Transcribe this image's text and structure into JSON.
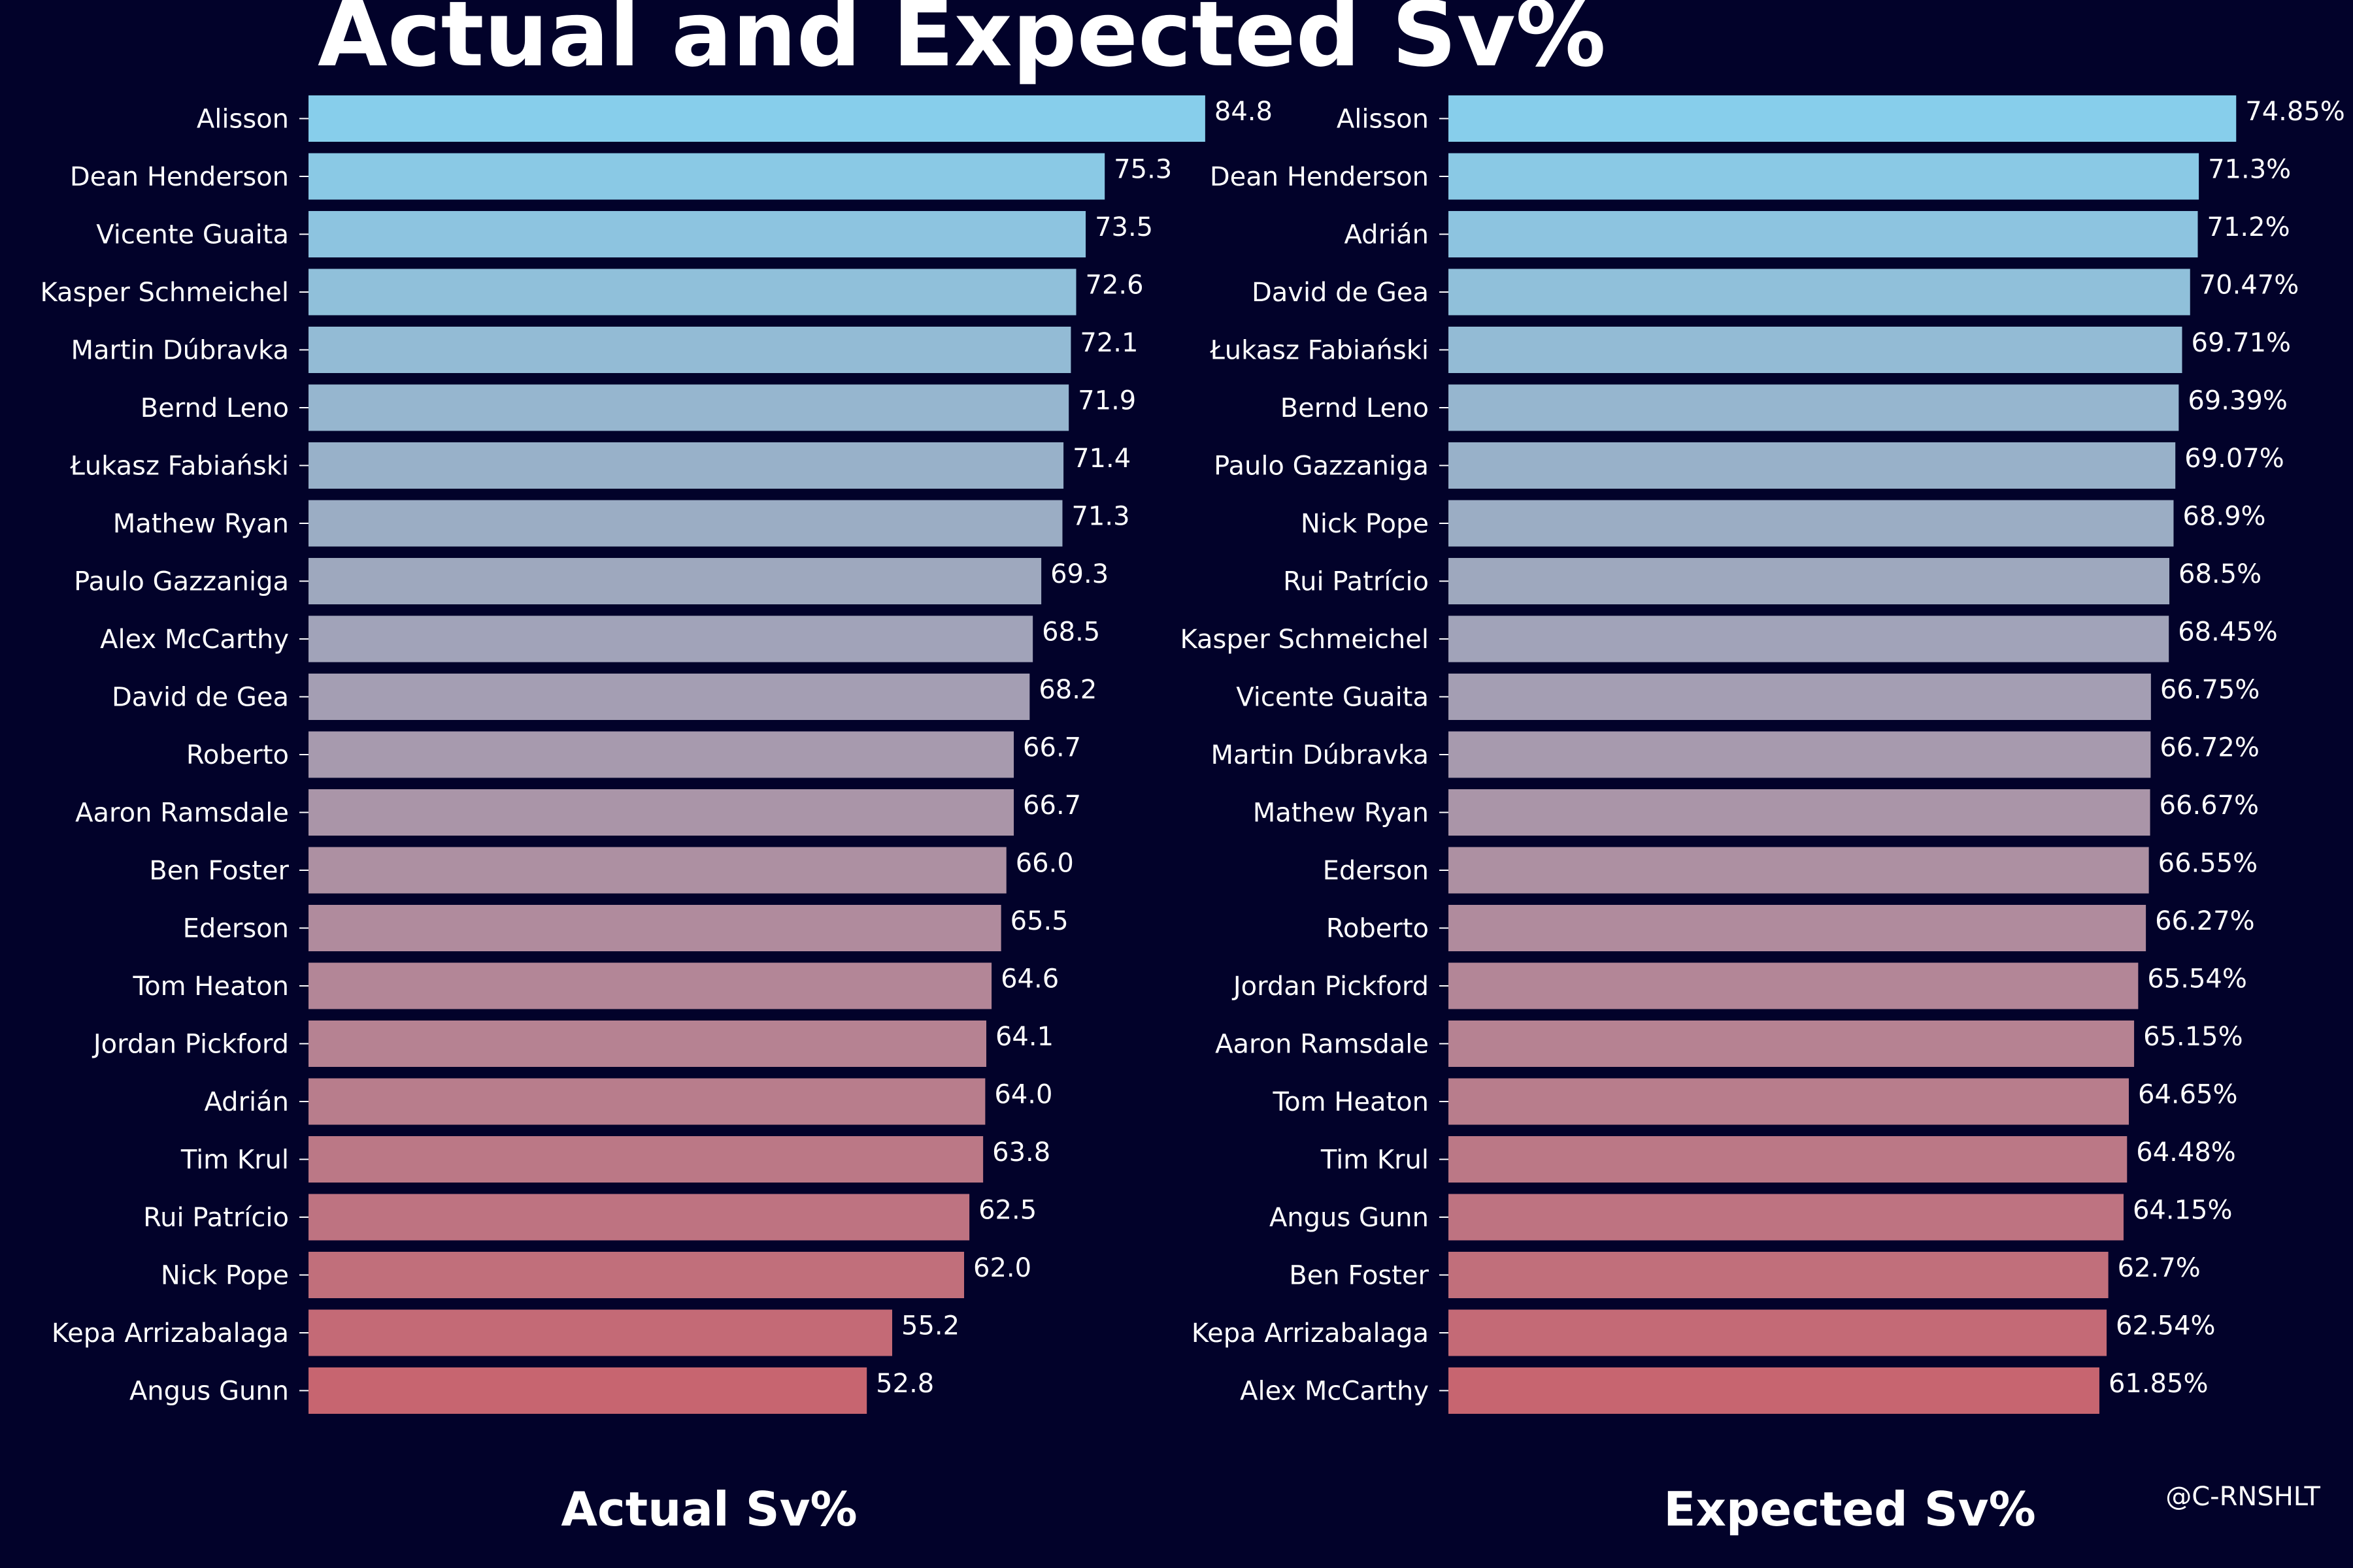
{
  "title": "Actual and Expected Sv%",
  "credit": "@C-RNSHLT",
  "colors": {
    "background": "#02022a",
    "text": "#ffffff",
    "bar_top": "#87ceeb",
    "bar_bottom": "#c76570"
  },
  "chart_data": [
    {
      "type": "bar",
      "orientation": "horizontal",
      "xlabel": "Actual Sv%",
      "xlim": [
        0,
        90
      ],
      "grid": false,
      "categories": [
        "Alisson",
        "Dean Henderson",
        "Vicente Guaita",
        "Kasper Schmeichel",
        "Martin Dúbravka",
        "Bernd Leno",
        "Łukasz Fabiański",
        "Mathew Ryan",
        "Paulo Gazzaniga",
        "Alex McCarthy",
        "David de Gea",
        "Roberto",
        "Aaron Ramsdale",
        "Ben Foster",
        "Ederson",
        "Tom Heaton",
        "Jordan Pickford",
        "Adrián",
        "Tim Krul",
        "Rui Patrício",
        "Nick Pope",
        "Kepa Arrizabalaga",
        "Angus Gunn"
      ],
      "values": [
        84.8,
        75.3,
        73.5,
        72.6,
        72.1,
        71.9,
        71.4,
        71.3,
        69.3,
        68.5,
        68.2,
        66.7,
        66.7,
        66.0,
        65.5,
        64.6,
        64.1,
        64.0,
        63.8,
        62.5,
        62.0,
        55.2,
        52.8
      ],
      "value_labels": [
        "84.8",
        "75.3",
        "73.5",
        "72.6",
        "72.1",
        "71.9",
        "71.4",
        "71.3",
        "69.3",
        "68.5",
        "68.2",
        "66.7",
        "66.7",
        "66.0",
        "65.5",
        "64.6",
        "64.1",
        "64.0",
        "63.8",
        "62.5",
        "62.0",
        "55.2",
        "52.8"
      ]
    },
    {
      "type": "bar",
      "orientation": "horizontal",
      "xlabel": "Expected Sv%",
      "xlim": [
        0,
        78
      ],
      "grid": false,
      "categories": [
        "Alisson",
        "Dean Henderson",
        "Adrián",
        "David de Gea",
        "Łukasz Fabiański",
        "Bernd Leno",
        "Paulo Gazzaniga",
        "Nick Pope",
        "Rui Patrício",
        "Kasper Schmeichel",
        "Vicente Guaita",
        "Martin Dúbravka",
        "Mathew Ryan",
        "Ederson",
        "Roberto",
        "Jordan Pickford",
        "Aaron Ramsdale",
        "Tom Heaton",
        "Tim Krul",
        "Angus Gunn",
        "Ben Foster",
        "Kepa Arrizabalaga",
        "Alex McCarthy"
      ],
      "values": [
        74.85,
        71.3,
        71.2,
        70.47,
        69.71,
        69.39,
        69.07,
        68.9,
        68.5,
        68.45,
        66.75,
        66.72,
        66.67,
        66.55,
        66.27,
        65.54,
        65.15,
        64.65,
        64.48,
        64.15,
        62.7,
        62.54,
        61.85
      ],
      "value_labels": [
        "74.85%",
        "71.3%",
        "71.2%",
        "70.47%",
        "69.71%",
        "69.39%",
        "69.07%",
        "68.9%",
        "68.5%",
        "68.45%",
        "66.75%",
        "66.72%",
        "66.67%",
        "66.55%",
        "66.27%",
        "65.54%",
        "65.15%",
        "64.65%",
        "64.48%",
        "64.15%",
        "62.7%",
        "62.54%",
        "61.85%"
      ]
    }
  ]
}
